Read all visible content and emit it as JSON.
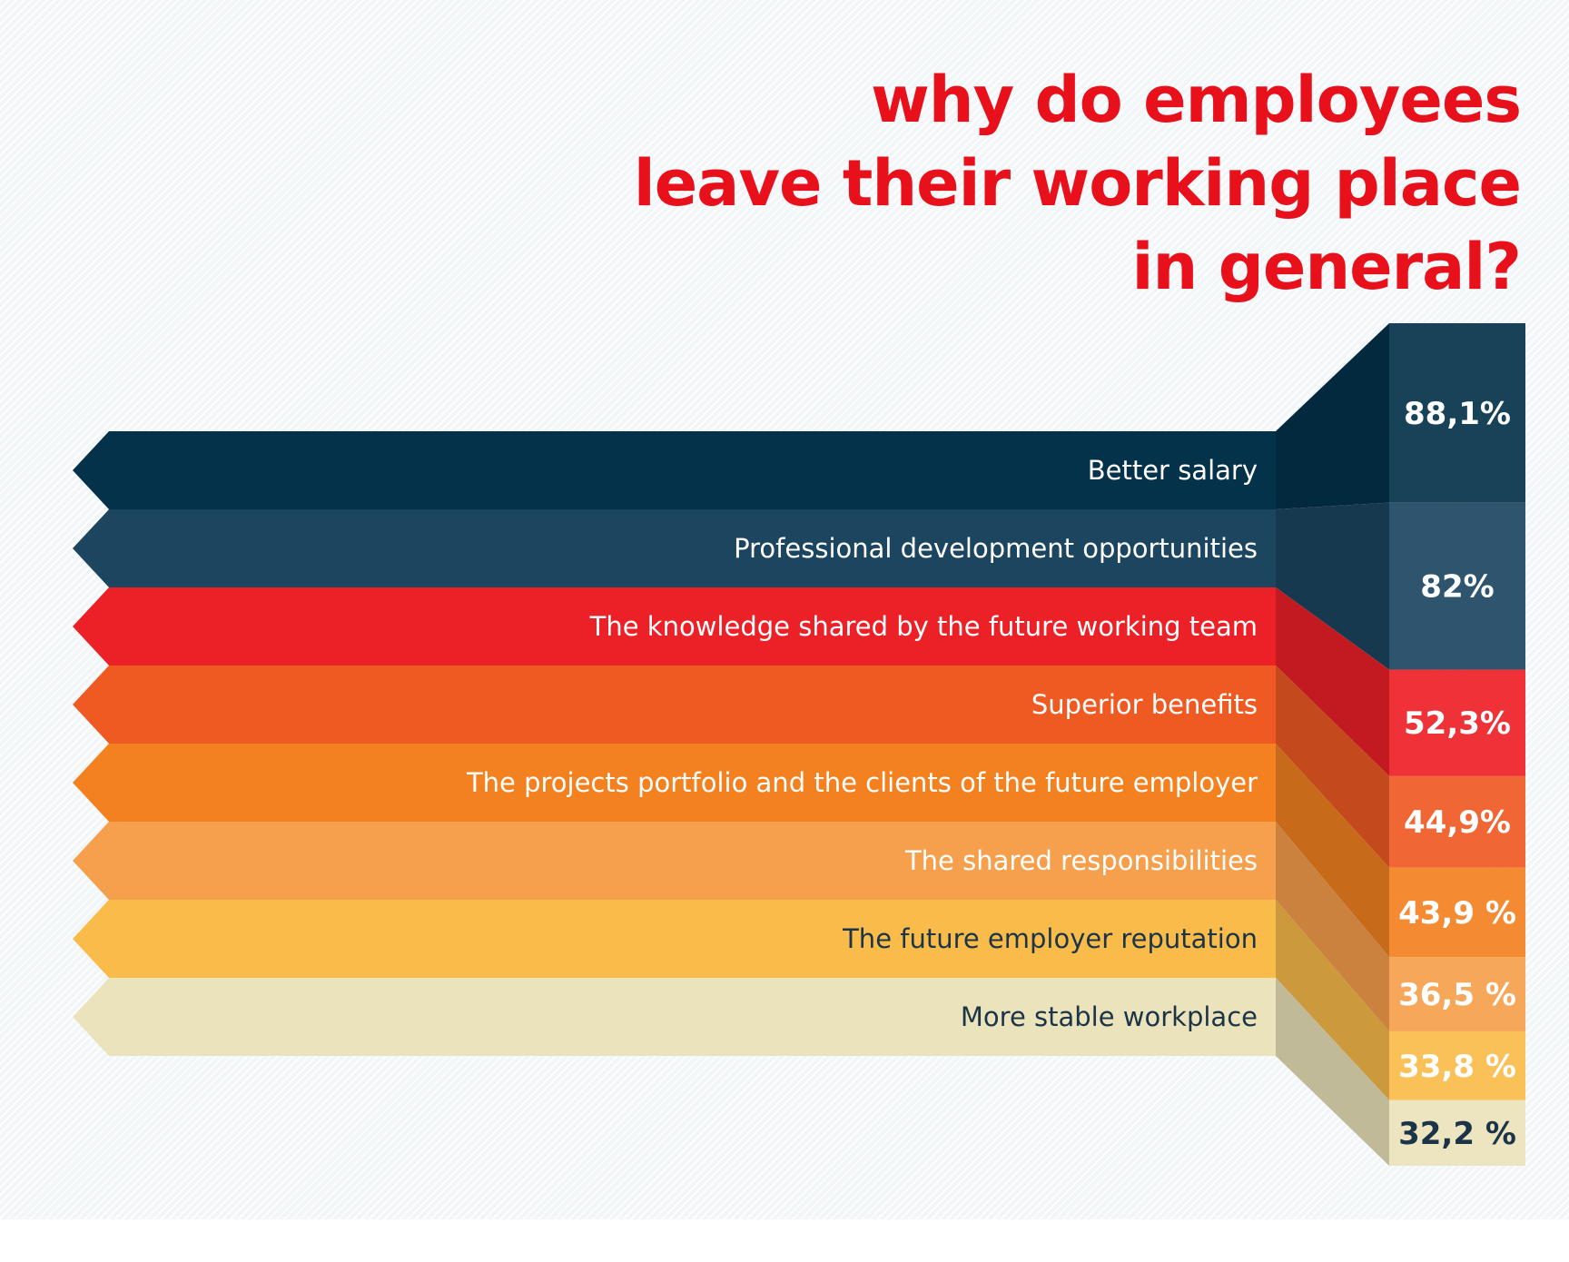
{
  "chart_data": {
    "type": "bar",
    "title_lines": [
      "why do employees",
      "leave their working place",
      "in general?"
    ],
    "categories": [
      "Better salary",
      "Professional development opportunities",
      "The knowledge shared by the future working team",
      "Superior benefits",
      "The projects portfolio and the clients of the future employer",
      "The shared responsibilities",
      "The future employer reputation",
      "More stable workplace"
    ],
    "values": [
      88.1,
      82,
      52.3,
      44.9,
      43.9,
      36.5,
      33.8,
      32.2
    ],
    "value_labels": [
      "88,1%",
      "82%",
      "52,3%",
      "44,9%",
      "43,9 %",
      "36,5 %",
      "33,8 %",
      "32,2 %"
    ],
    "unit": "%",
    "colors": [
      "#03324a",
      "#1c4660",
      "#ec2027",
      "#ef5a23",
      "#f38120",
      "#f69f4c",
      "#f9bc4a",
      "#ebe3bb"
    ],
    "label_colors": [
      "#ffffff",
      "#ffffff",
      "#ffffff",
      "#ffffff",
      "#ffffff",
      "#ffffff",
      "#1c3447",
      "#1c3447"
    ],
    "value_label_colors": [
      "#ffffff",
      "#ffffff",
      "#ffffff",
      "#ffffff",
      "#ffffff",
      "#ffffff",
      "#ffffff",
      "#1c3447"
    ],
    "xlabel": "",
    "ylabel": "",
    "orientation": "horizontal-ribbons",
    "grid": false,
    "legend": "none"
  },
  "colors": {
    "title": "#e8101a",
    "background": "#f2f6f9"
  }
}
